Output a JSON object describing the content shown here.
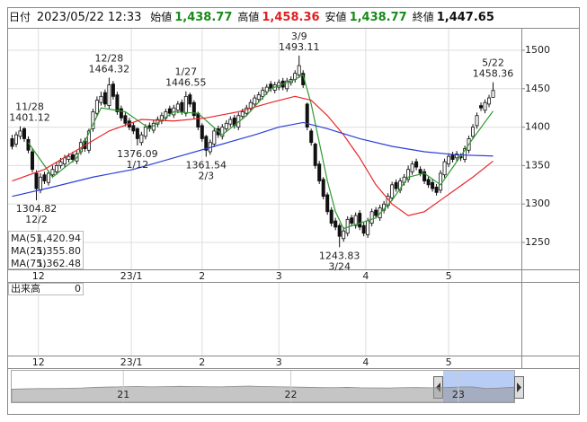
{
  "chart_data": {
    "type": "candlestick",
    "header": {
      "date_label": "日付",
      "datetime": "2023/05/22 12:33",
      "fields": [
        {
          "label": "始値",
          "value": "1,438.77",
          "color": "#1a8a1a"
        },
        {
          "label": "高値",
          "value": "1,458.36",
          "color": "#e02020"
        },
        {
          "label": "安値",
          "value": "1,438.77",
          "color": "#1a8a1a"
        },
        {
          "label": "終値",
          "value": "1,447.65",
          "color": "#111111"
        }
      ]
    },
    "xlim": [
      -1,
      126
    ],
    "xticks": [
      {
        "value": 6.5,
        "label": "12"
      },
      {
        "value": 29.5,
        "label": "23/1"
      },
      {
        "value": 47,
        "label": "2"
      },
      {
        "value": 66,
        "label": "3"
      },
      {
        "value": 87.5,
        "label": "4"
      },
      {
        "value": 108,
        "label": "5"
      }
    ],
    "ylim": [
      1215,
      1528
    ],
    "yticks": [
      1250,
      1300,
      1350,
      1400,
      1450,
      1500
    ],
    "grid": true,
    "open": [
      1385,
      1378,
      1388,
      1398,
      1384,
      1368,
      1340,
      1318,
      1338,
      1328,
      1338,
      1342,
      1350,
      1352,
      1358,
      1364,
      1356,
      1368,
      1382,
      1370,
      1398,
      1418,
      1432,
      1445,
      1428,
      1456,
      1442,
      1424,
      1415,
      1408,
      1402,
      1398,
      1380,
      1388,
      1402,
      1396,
      1404,
      1408,
      1412,
      1424,
      1416,
      1422,
      1432,
      1418,
      1442,
      1432,
      1418,
      1402,
      1388,
      1368,
      1378,
      1398,
      1388,
      1398,
      1404,
      1412,
      1400,
      1414,
      1418,
      1424,
      1430,
      1436,
      1440,
      1446,
      1456,
      1448,
      1452,
      1460,
      1450,
      1458,
      1462,
      1468,
      1470,
      1430,
      1395,
      1378,
      1352,
      1332,
      1312,
      1292,
      1278,
      1272,
      1255,
      1262,
      1282,
      1272,
      1288,
      1272,
      1260,
      1275,
      1292,
      1282,
      1292,
      1298,
      1308,
      1328,
      1318,
      1328,
      1332,
      1342,
      1355,
      1345,
      1342,
      1332,
      1328,
      1322,
      1318,
      1338,
      1352,
      1364,
      1360,
      1362,
      1358,
      1370,
      1388,
      1402,
      1428,
      1422,
      1430,
      1438.77
    ],
    "high": [
      1390,
      1394,
      1401.12,
      1400,
      1388,
      1372,
      1344,
      1340,
      1342,
      1344,
      1350,
      1354,
      1360,
      1364,
      1366,
      1368,
      1369,
      1385,
      1386,
      1398,
      1424,
      1440,
      1446,
      1449,
      1464.32,
      1460,
      1446,
      1428,
      1419,
      1412,
      1406,
      1400,
      1394,
      1404,
      1406,
      1409,
      1414,
      1419,
      1424,
      1428,
      1429,
      1434,
      1436,
      1446.55,
      1445,
      1435,
      1420,
      1405,
      1390,
      1384,
      1399,
      1402,
      1404,
      1409,
      1414,
      1416,
      1419,
      1424,
      1429,
      1436,
      1442,
      1446,
      1452,
      1456,
      1460,
      1459,
      1462,
      1464,
      1464,
      1466,
      1474,
      1493.11,
      1474,
      1432,
      1398,
      1380,
      1356,
      1335,
      1315,
      1296,
      1282,
      1275,
      1270,
      1284,
      1286,
      1289,
      1292,
      1276,
      1282,
      1294,
      1296,
      1299,
      1304,
      1314,
      1329,
      1332,
      1334,
      1339,
      1350,
      1356,
      1359,
      1349,
      1346,
      1336,
      1332,
      1326,
      1344,
      1359,
      1366,
      1368,
      1369,
      1366,
      1376,
      1389,
      1404,
      1419,
      1432,
      1436,
      1442,
      1458.36
    ],
    "low": [
      1371,
      1374,
      1384,
      1381,
      1366,
      1341,
      1304.82,
      1314,
      1326,
      1324,
      1334,
      1338,
      1346,
      1348,
      1354,
      1354,
      1352,
      1364,
      1368,
      1366,
      1394,
      1414,
      1428,
      1426,
      1424,
      1436,
      1416,
      1408,
      1401,
      1396,
      1391,
      1376.09,
      1376,
      1384,
      1394,
      1392,
      1400,
      1404,
      1408,
      1414,
      1412,
      1418,
      1416,
      1414,
      1426,
      1411,
      1396,
      1381,
      1361.54,
      1364,
      1374,
      1386,
      1384,
      1394,
      1400,
      1398,
      1396,
      1410,
      1414,
      1420,
      1426,
      1432,
      1436,
      1442,
      1446,
      1444,
      1448,
      1448,
      1446,
      1454,
      1458,
      1464,
      1451,
      1396,
      1376,
      1346,
      1326,
      1306,
      1286,
      1271,
      1266,
      1243.83,
      1251,
      1258,
      1271,
      1268,
      1266,
      1258,
      1256,
      1271,
      1281,
      1278,
      1288,
      1294,
      1304,
      1316,
      1314,
      1324,
      1328,
      1338,
      1344,
      1336,
      1326,
      1321,
      1316,
      1311,
      1314,
      1334,
      1348,
      1354,
      1356,
      1356,
      1354,
      1366,
      1384,
      1398,
      1421,
      1418,
      1426,
      1438.77
    ],
    "close": [
      1375,
      1390,
      1395,
      1385,
      1370,
      1345,
      1320,
      1335,
      1330,
      1340,
      1345,
      1350,
      1355,
      1360,
      1362,
      1358,
      1365,
      1380,
      1372,
      1395,
      1420,
      1435,
      1440,
      1430,
      1455,
      1440,
      1420,
      1412,
      1405,
      1400,
      1395,
      1385,
      1390,
      1400,
      1398,
      1405,
      1410,
      1415,
      1420,
      1418,
      1425,
      1430,
      1420,
      1440,
      1430,
      1415,
      1400,
      1385,
      1370,
      1380,
      1395,
      1390,
      1400,
      1405,
      1410,
      1402,
      1415,
      1420,
      1425,
      1432,
      1438,
      1442,
      1448,
      1452,
      1450,
      1455,
      1458,
      1452,
      1460,
      1462,
      1470,
      1480,
      1455,
      1400,
      1380,
      1350,
      1330,
      1310,
      1290,
      1275,
      1270,
      1258,
      1265,
      1280,
      1275,
      1285,
      1270,
      1262,
      1278,
      1290,
      1285,
      1295,
      1300,
      1310,
      1325,
      1320,
      1330,
      1335,
      1345,
      1352,
      1348,
      1340,
      1330,
      1325,
      1320,
      1315,
      1340,
      1355,
      1362,
      1358,
      1365,
      1360,
      1372,
      1385,
      1400,
      1415,
      1425,
      1432,
      1438,
      1447.65
    ],
    "overlays": [
      {
        "name": "MA(5)",
        "color": "#2f9a2f",
        "value_label": "1,420.94",
        "x": [
          4,
          10,
          16,
          22,
          28,
          34,
          40,
          46,
          52,
          58,
          64,
          70,
          72,
          74,
          76,
          78,
          80,
          82,
          86,
          90,
          94,
          98,
          102,
          106,
          110,
          114,
          119
        ],
        "values": [
          1380,
          1335,
          1360,
          1425,
          1420,
          1398,
          1420,
          1418,
          1390,
          1415,
          1450,
          1462,
          1468,
          1430,
          1380,
          1330,
          1290,
          1268,
          1275,
          1282,
          1305,
          1335,
          1340,
          1325,
          1355,
          1385,
          1420.94
        ]
      },
      {
        "name": "MA(25)",
        "color": "#e8262a",
        "value_label": "1,355.80",
        "x": [
          0,
          8,
          16,
          24,
          32,
          40,
          48,
          56,
          64,
          70,
          74,
          78,
          82,
          86,
          90,
          94,
          98,
          102,
          106,
          110,
          114,
          119
        ],
        "values": [
          1330,
          1345,
          1370,
          1395,
          1410,
          1408,
          1412,
          1420,
          1432,
          1440,
          1435,
          1415,
          1390,
          1360,
          1325,
          1300,
          1285,
          1290,
          1305,
          1320,
          1335,
          1355.8
        ]
      },
      {
        "name": "MA(75)",
        "color": "#2a3fd8",
        "value_label": "1,362.48",
        "x": [
          0,
          10,
          20,
          30,
          40,
          50,
          60,
          66,
          72,
          78,
          86,
          94,
          102,
          110,
          119
        ],
        "values": [
          1310,
          1322,
          1335,
          1345,
          1360,
          1375,
          1390,
          1400,
          1406,
          1398,
          1385,
          1375,
          1368,
          1364,
          1362.48
        ]
      }
    ],
    "annotations": [
      {
        "date": "11/28",
        "price": 1401.12,
        "at": "high"
      },
      {
        "date": "12/2",
        "price": 1304.82,
        "at": "low"
      },
      {
        "date": "12/28",
        "price": 1464.32,
        "at": "high"
      },
      {
        "date": "1/12",
        "price": 1376.09,
        "at": "low"
      },
      {
        "date": "1/27",
        "price": 1446.55,
        "at": "high"
      },
      {
        "date": "2/3",
        "price": 1361.54,
        "at": "low"
      },
      {
        "date": "3/9",
        "price": 1493.11,
        "at": "high"
      },
      {
        "date": "3/24",
        "price": 1243.83,
        "at": "low"
      },
      {
        "date": "5/22",
        "price": 1458.36,
        "at": "high"
      }
    ],
    "volume": {
      "label": "出来高",
      "value": 0
    },
    "navigator": {
      "xlim": [
        0,
        36
      ],
      "ylim": [
        0,
        3000
      ],
      "xticks": [
        {
          "value": 8,
          "label": "21"
        },
        {
          "value": 20,
          "label": "22"
        },
        {
          "value": 32,
          "label": "23"
        }
      ],
      "values": [
        1250,
        1280,
        1310,
        1300,
        1330,
        1360,
        1420,
        1450,
        1480,
        1500,
        1470,
        1490,
        1520,
        1500,
        1480,
        1470,
        1510,
        1540,
        1500,
        1480,
        1460,
        1430,
        1400,
        1390,
        1420,
        1380,
        1370,
        1360,
        1390,
        1400,
        1380,
        1400,
        1450,
        1470,
        1300,
        1360,
        1440
      ]
    }
  }
}
